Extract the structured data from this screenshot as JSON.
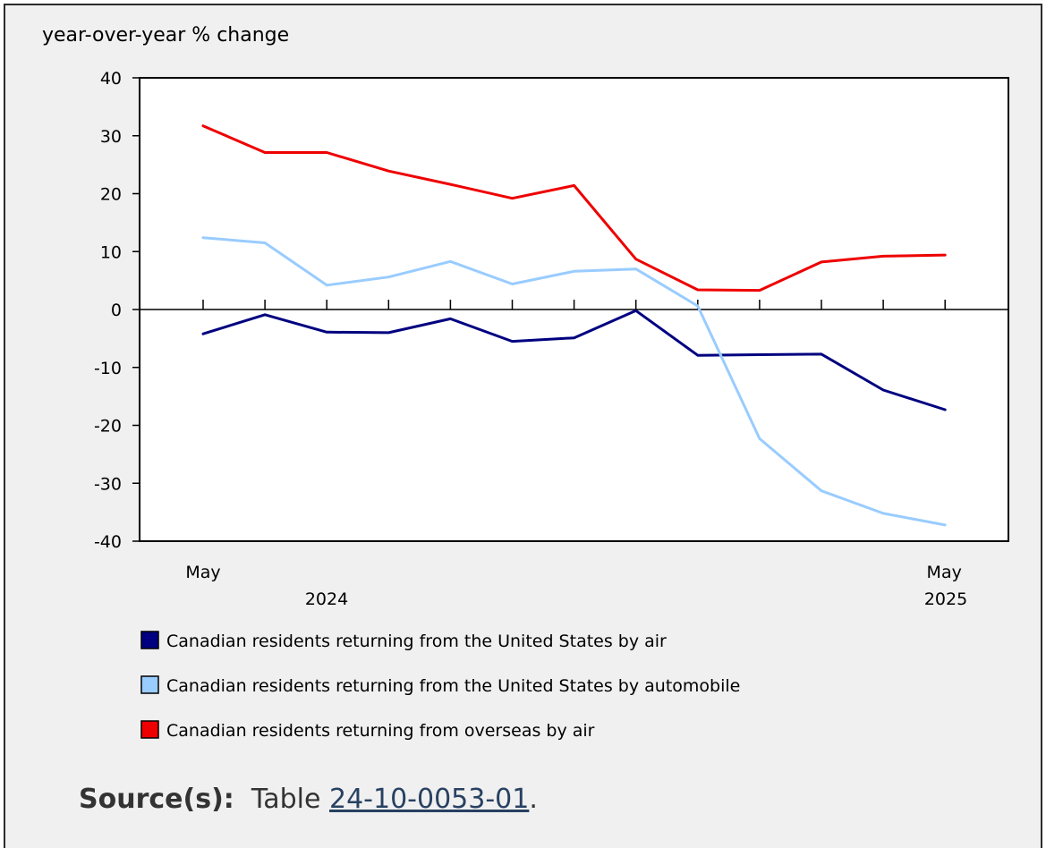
{
  "chart_data": {
    "type": "line",
    "ylabel": "year-over-year % change",
    "ylim": [
      -40,
      40
    ],
    "yticks": [
      -40,
      -30,
      -20,
      -10,
      0,
      10,
      20,
      30,
      40
    ],
    "x": [
      "2024-05",
      "2024-06",
      "2024-07",
      "2024-08",
      "2024-09",
      "2024-10",
      "2024-11",
      "2024-12",
      "2025-01",
      "2025-02",
      "2025-03",
      "2025-04",
      "2025-05"
    ],
    "x_tick_labels": [
      {
        "index": 0,
        "month": "May",
        "year": "2024"
      },
      {
        "index": 12,
        "month": "May",
        "year": "2025"
      }
    ],
    "grid": false,
    "legend": "bottom",
    "series": [
      {
        "name": "Canadian residents returning from the United States by air",
        "color": "#000080",
        "values": [
          -4.2,
          -0.9,
          -3.9,
          -4.0,
          -1.6,
          -5.5,
          -4.9,
          -0.2,
          -7.9,
          -7.8,
          -7.7,
          -13.9,
          -17.3
        ]
      },
      {
        "name": "Canadian residents returning from the United States by automobile",
        "color": "#99ccff",
        "values": [
          12.4,
          11.5,
          4.2,
          5.6,
          8.3,
          4.4,
          6.6,
          7.0,
          0.6,
          -22.3,
          -31.3,
          -35.2,
          -37.2
        ]
      },
      {
        "name": "Canadian residents returning from overseas by air",
        "color": "#ee0000",
        "values": [
          31.7,
          27.1,
          27.1,
          23.9,
          21.6,
          19.2,
          21.4,
          8.7,
          3.4,
          3.3,
          8.2,
          9.2,
          9.4
        ]
      }
    ]
  },
  "source": {
    "label": "Source(s):",
    "prefix": "Table",
    "link_text": "24-10-0053-01",
    "suffix": "."
  }
}
